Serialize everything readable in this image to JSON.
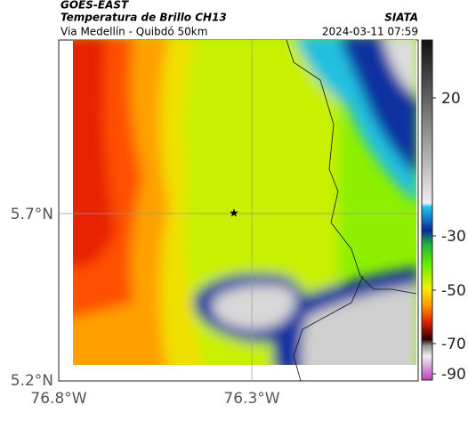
{
  "header": {
    "source": "GOES-EAST",
    "product": "Temperatura de Brillo CH13",
    "route": "Via Medellín - Quibdó 50km",
    "agency": "SIATA",
    "datetime": "2024-03-11 07:59"
  },
  "axes": {
    "lat_labels": [
      "5.7°N",
      "5.2°N"
    ],
    "lon_labels": [
      "76.8°W",
      "76.3°W"
    ]
  },
  "colorbar": {
    "tick_labels": [
      "20",
      "-30",
      "-50",
      "-70",
      "-90"
    ]
  }
}
